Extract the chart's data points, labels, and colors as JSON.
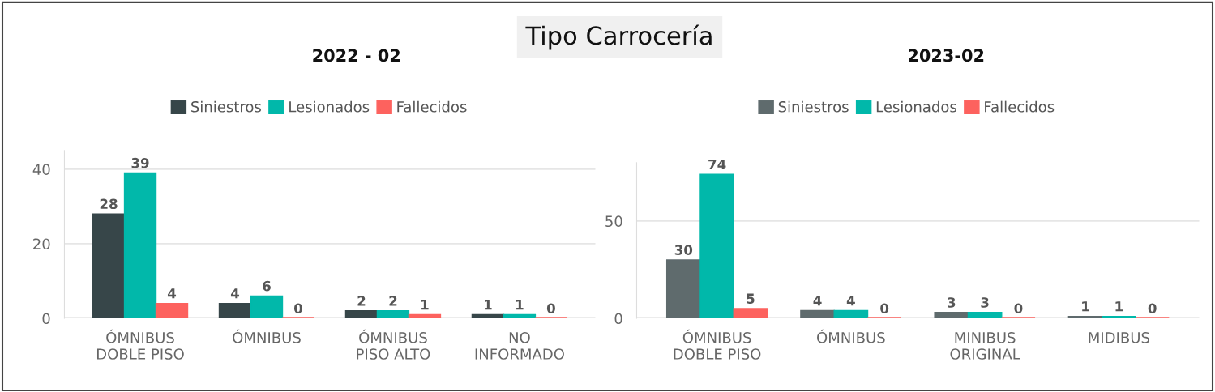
{
  "chart_data": [
    {
      "type": "other",
      "title": "Tipo Carrocería"
    },
    {
      "type": "bar",
      "title": "2022 - 02",
      "categories": [
        "ÓMNIBUS\nDOBLE PISO",
        "ÓMNIBUS",
        "ÓMNIBUS\nPISO ALTO",
        "NO\nINFORMADO"
      ],
      "series": [
        {
          "name": "Siniestros",
          "color": "#374649",
          "values": [
            28,
            4,
            2,
            1
          ]
        },
        {
          "name": "Lesionados",
          "color": "#01b8aa",
          "values": [
            39,
            6,
            2,
            1
          ]
        },
        {
          "name": "Fallecidos",
          "color": "#fd625e",
          "values": [
            4,
            0,
            1,
            0
          ]
        }
      ],
      "ylim": [
        0,
        45
      ],
      "yticks": [
        0,
        20,
        40
      ],
      "grid": "y",
      "legend": "top",
      "data_labels": true
    },
    {
      "type": "bar",
      "title": "2023-02",
      "categories": [
        "ÓMNIBUS\nDOBLE PISO",
        "ÓMNIBUS",
        "MINIBUS\nORIGINAL",
        "MIDIBUS"
      ],
      "series": [
        {
          "name": "Siniestros",
          "color": "#5f6b6d",
          "values": [
            30,
            4,
            3,
            1
          ]
        },
        {
          "name": "Lesionados",
          "color": "#01b8aa",
          "values": [
            74,
            4,
            3,
            1
          ]
        },
        {
          "name": "Fallecidos",
          "color": "#fd625e",
          "values": [
            5,
            0,
            0,
            0
          ]
        }
      ],
      "ylim": [
        0,
        80
      ],
      "yticks": [
        0,
        50
      ],
      "grid": "y",
      "legend": "top",
      "data_labels": true
    }
  ]
}
